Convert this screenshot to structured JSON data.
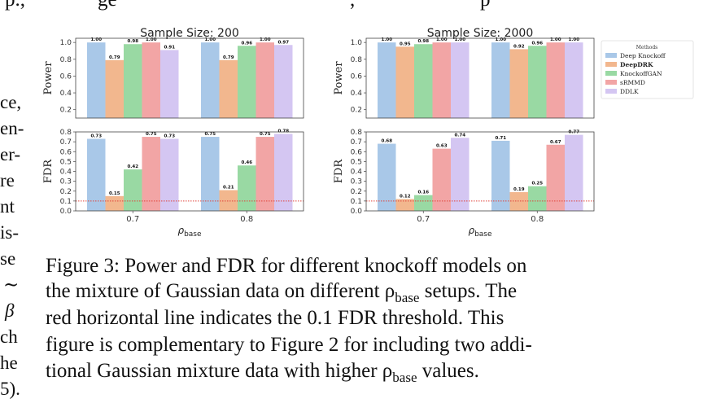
{
  "top_fragment": [
    "p.,",
    "ge",
    ",",
    "p"
  ],
  "side_fragments": [
    "ce,",
    "en-",
    "er-",
    "re",
    "nt",
    "is-",
    "se",
    "∼",
    "β",
    "ch",
    "he",
    "5)."
  ],
  "caption": {
    "lines": [
      "Figure 3: Power and FDR for different knockoff models on",
      "the mixture of Gaussian data on different ρ",
      "red horizontal line indicates the 0.1 FDR threshold.  This",
      "figure is complementary to Figure 2 for including two addi-",
      "tional Gaussian mixture data with higher ρ"
    ],
    "line2_tail": " setups. The",
    "line5_tail": " values.",
    "subscript": "base"
  },
  "legend": {
    "title": "Methods",
    "items": [
      {
        "label": "Deep Knockoff",
        "color": "#a9c8e8",
        "bold": false
      },
      {
        "label": "DeepDRK",
        "color": "#f2b78e",
        "bold": true
      },
      {
        "label": "KnockoffGAN",
        "color": "#99d9a3",
        "bold": false
      },
      {
        "label": "sRMMD",
        "color": "#f2a5a5",
        "bold": false
      },
      {
        "label": "DDLK",
        "color": "#d4c6f2",
        "bold": false
      }
    ]
  },
  "chart_data": [
    {
      "type": "bar",
      "title": "Sample Size: 200",
      "ylabel": "Power",
      "ylim": [
        0.1,
        1.05
      ],
      "yticks": [
        "0.2",
        "0.4",
        "0.6",
        "0.8",
        "1.0"
      ],
      "categories": [
        "0.7",
        "0.8"
      ],
      "series": [
        {
          "name": "Deep Knockoff",
          "values": [
            1.0,
            1.0
          ]
        },
        {
          "name": "DeepDRK",
          "values": [
            0.79,
            0.79
          ]
        },
        {
          "name": "KnockoffGAN",
          "values": [
            0.98,
            0.96
          ]
        },
        {
          "name": "sRMMD",
          "values": [
            1.0,
            1.0
          ]
        },
        {
          "name": "DDLK",
          "values": [
            0.91,
            0.97
          ]
        }
      ],
      "labels": [
        [
          "1.00",
          "1.00"
        ],
        [
          "0.79",
          "0.79"
        ],
        [
          "0.98",
          "0.96"
        ],
        [
          "1.00",
          "1.00"
        ],
        [
          "0.91",
          "0.97"
        ]
      ]
    },
    {
      "type": "bar",
      "title": "Sample Size: 2000",
      "ylabel": "Power",
      "ylim": [
        0.1,
        1.05
      ],
      "yticks": [
        "0.2",
        "0.4",
        "0.6",
        "0.8",
        "1.0"
      ],
      "categories": [
        "0.7",
        "0.8"
      ],
      "series": [
        {
          "name": "Deep Knockoff",
          "values": [
            1.0,
            1.0
          ]
        },
        {
          "name": "DeepDRK",
          "values": [
            0.95,
            0.92
          ]
        },
        {
          "name": "KnockoffGAN",
          "values": [
            0.98,
            0.96
          ]
        },
        {
          "name": "sRMMD",
          "values": [
            1.0,
            1.0
          ]
        },
        {
          "name": "DDLK",
          "values": [
            1.0,
            1.0
          ]
        }
      ],
      "labels": [
        [
          "1.00",
          "1.00"
        ],
        [
          "0.95",
          "0.92"
        ],
        [
          "0.98",
          "0.96"
        ],
        [
          "1.00",
          "1.00"
        ],
        [
          "1.00",
          "1.00"
        ]
      ]
    },
    {
      "type": "bar",
      "title": "",
      "ylabel": "FDR",
      "xlabel": "ρbase",
      "ylim": [
        0,
        0.8
      ],
      "yticks": [
        "0.0",
        "0.1",
        "0.2",
        "0.3",
        "0.4",
        "0.5",
        "0.6",
        "0.7",
        "0.8"
      ],
      "threshold": 0.1,
      "categories": [
        "0.7",
        "0.8"
      ],
      "series": [
        {
          "name": "Deep Knockoff",
          "values": [
            0.73,
            0.75
          ]
        },
        {
          "name": "DeepDRK",
          "values": [
            0.15,
            0.21
          ]
        },
        {
          "name": "KnockoffGAN",
          "values": [
            0.42,
            0.46
          ]
        },
        {
          "name": "sRMMD",
          "values": [
            0.75,
            0.75
          ]
        },
        {
          "name": "DDLK",
          "values": [
            0.73,
            0.78
          ]
        }
      ],
      "labels": [
        [
          "0.73",
          "0.75"
        ],
        [
          "0.15",
          "0.21"
        ],
        [
          "0.42",
          "0.46"
        ],
        [
          "0.75",
          "0.75"
        ],
        [
          "0.73",
          "0.78"
        ]
      ]
    },
    {
      "type": "bar",
      "title": "",
      "ylabel": "FDR",
      "xlabel": "ρbase",
      "ylim": [
        0,
        0.8
      ],
      "yticks": [
        "0.0",
        "0.1",
        "0.2",
        "0.3",
        "0.4",
        "0.5",
        "0.6",
        "0.7",
        "0.8"
      ],
      "threshold": 0.1,
      "categories": [
        "0.7",
        "0.8"
      ],
      "series": [
        {
          "name": "Deep Knockoff",
          "values": [
            0.68,
            0.71
          ]
        },
        {
          "name": "DeepDRK",
          "values": [
            0.12,
            0.19
          ]
        },
        {
          "name": "KnockoffGAN",
          "values": [
            0.16,
            0.25
          ]
        },
        {
          "name": "sRMMD",
          "values": [
            0.63,
            0.67
          ]
        },
        {
          "name": "DDLK",
          "values": [
            0.74,
            0.77
          ]
        }
      ],
      "labels": [
        [
          "0.68",
          "0.71"
        ],
        [
          "0.12",
          "0.19"
        ],
        [
          "0.16",
          "0.25"
        ],
        [
          "0.63",
          "0.67"
        ],
        [
          "0.74",
          "0.77"
        ]
      ]
    }
  ]
}
